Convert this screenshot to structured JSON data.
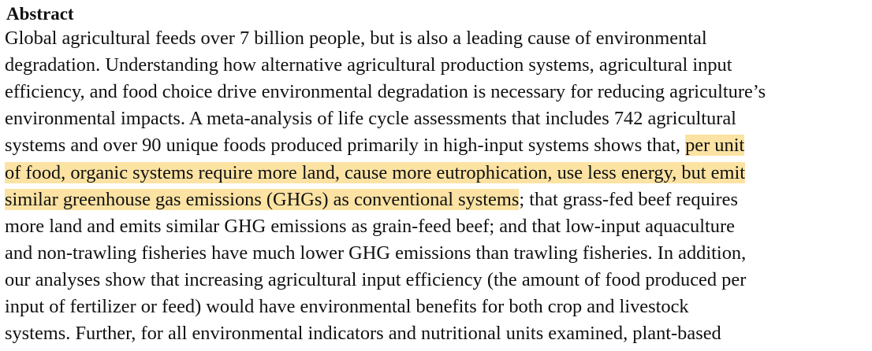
{
  "abstract": {
    "heading": "Abstract",
    "lines": [
      "Global agricultural feeds over 7 billion people, but is also a leading cause of environmental",
      "degradation. Understanding how alternative agricultural production systems, agricultural input",
      "efficiency, and food choice drive environmental degradation is necessary for reducing agriculture’s",
      "environmental impacts. A meta-analysis of life cycle assessments that includes 742 agricultural",
      "more land and emits similar GHG emissions as grain-feed beef; and that low-input aquaculture",
      "and non-trawling fisheries have much lower GHG emissions than trawling fisheries. In addition,",
      "our analyses show that increasing agricultural input efficiency (the amount of food produced per",
      "input of fertilizer or feed) would have environmental benefits for both crop and livestock",
      "systems. Further, for all environmental indicators and nutritional units examined, plant-based"
    ],
    "line5_plain": "systems and over 90 unique foods produced primarily in high-input systems shows that, ",
    "line5_highlight": "per unit",
    "line6_highlight": "of food, organic systems require more land, cause more eutrophication, use less energy, but emit",
    "line7_highlight": "similar greenhouse gas emissions (GHGs) as conventional systems",
    "line7_plain": "; that grass-fed beef requires",
    "highlight_color": "#fce3a3"
  }
}
